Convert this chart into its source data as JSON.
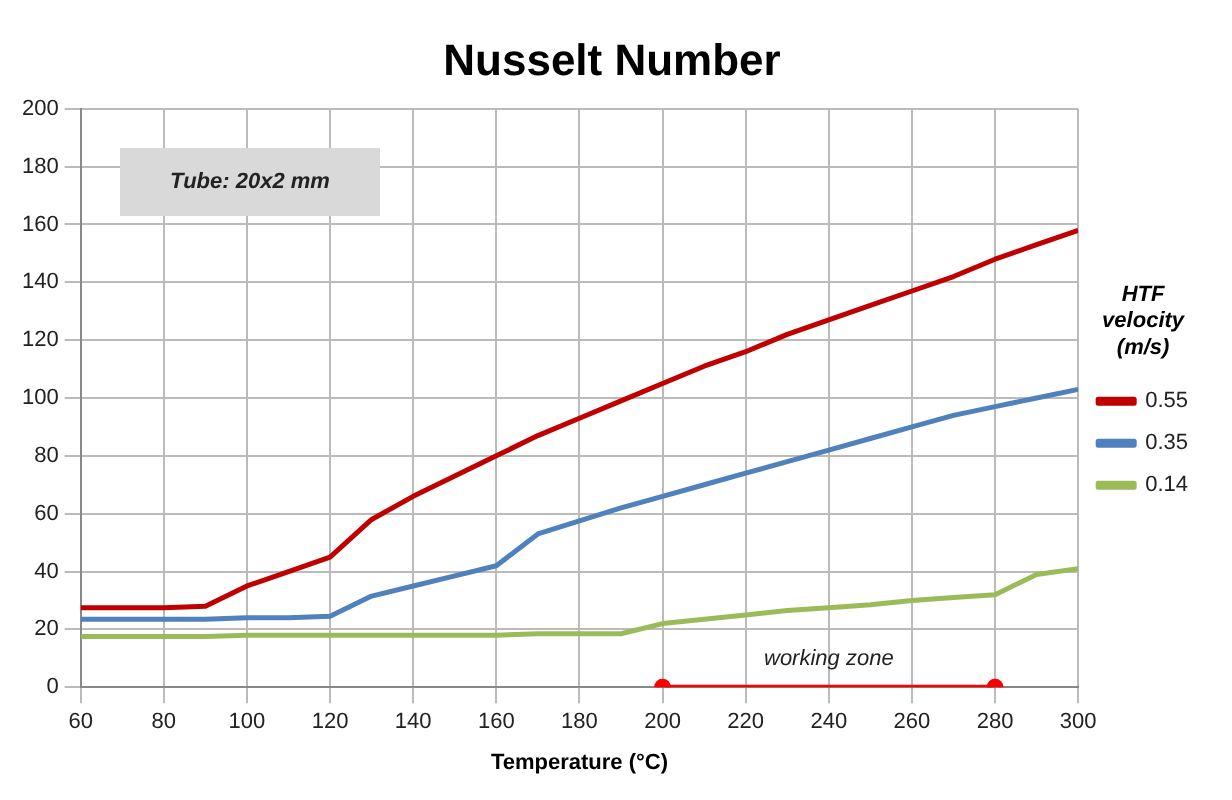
{
  "chart_data": {
    "type": "line",
    "title": "Nusselt Number",
    "xlabel": "Temperature (°C)",
    "legend_title": "HTF velocity (m/s)",
    "x": [
      60,
      70,
      80,
      90,
      100,
      110,
      120,
      130,
      140,
      150,
      160,
      170,
      180,
      190,
      200,
      210,
      220,
      230,
      240,
      250,
      260,
      270,
      280,
      290,
      300
    ],
    "series": [
      {
        "name": "0.55",
        "color": "#c00000",
        "values": [
          27.5,
          27.5,
          27.5,
          28,
          35,
          40,
          45,
          58,
          66,
          73,
          80,
          87,
          93,
          99,
          105,
          111,
          116,
          122,
          127,
          132,
          137,
          142,
          148,
          153,
          158
        ]
      },
      {
        "name": "0.35",
        "color": "#4f81bd",
        "values": [
          23.5,
          23.5,
          23.5,
          23.5,
          24,
          24,
          24.5,
          31.5,
          35,
          38.5,
          42,
          53,
          57.5,
          62,
          66,
          70,
          74,
          78,
          82,
          86,
          90,
          94,
          97,
          100,
          103
        ]
      },
      {
        "name": "0.14",
        "color": "#9bbb59",
        "values": [
          17.5,
          17.5,
          17.5,
          17.5,
          18,
          18,
          18,
          18,
          18,
          18,
          18,
          18.5,
          18.5,
          18.5,
          22,
          23.5,
          25,
          26.5,
          27.5,
          28.5,
          30,
          31,
          32,
          39,
          41
        ]
      },
      {
        "color": "#ff0000",
        "x": [
          200,
          280
        ],
        "values": [
          0,
          0
        ],
        "marker": "circle"
      }
    ],
    "xlim": [
      60,
      300
    ],
    "xticks": [
      60,
      80,
      100,
      120,
      140,
      160,
      180,
      200,
      220,
      240,
      260,
      280,
      300
    ],
    "ylim": [
      0,
      200
    ],
    "yticks": [
      0,
      20,
      40,
      60,
      80,
      100,
      120,
      140,
      160,
      180,
      200
    ],
    "grid": true,
    "legend": "right",
    "marker": "none",
    "line_style": "solid",
    "annotations": [
      "Tube: 20x2 mm",
      {
        "text": "working zone",
        "x": 240,
        "y": 0
      }
    ]
  }
}
